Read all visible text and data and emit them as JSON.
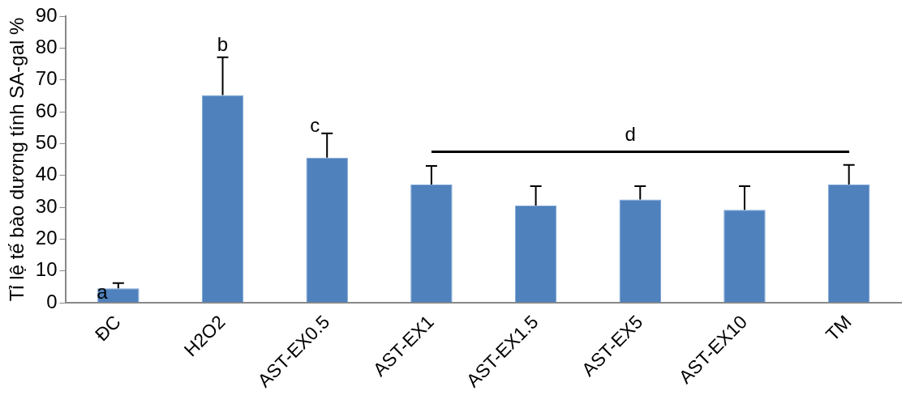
{
  "chart_data": {
    "type": "bar",
    "ylabel": "Tỉ lệ tế bào dương tính SA-gal %",
    "categories": [
      "ĐC",
      "H2O2",
      "AST-EX0.5",
      "AST-EX1",
      "AST-EX1.5",
      "AST-EX5",
      "AST-EX10",
      "TM"
    ],
    "values": [
      4.5,
      65.2,
      45.6,
      37.1,
      30.5,
      32.4,
      29.2,
      37.1
    ],
    "errors": [
      [
        4.5,
        6.2
      ],
      [
        65.2,
        77.1
      ],
      [
        45.6,
        53.2
      ],
      [
        37.1,
        43.0
      ],
      [
        30.5,
        36.6
      ],
      [
        32.4,
        36.6
      ],
      [
        29.2,
        36.6
      ],
      [
        37.1,
        43.3
      ]
    ],
    "color": "#4f81bd",
    "ylim": [
      0,
      90
    ],
    "yticks": [
      0,
      10,
      20,
      30,
      40,
      50,
      60,
      70,
      80,
      90
    ],
    "annotations": [
      "a",
      "b",
      "c",
      "d"
    ],
    "grid": false,
    "legend": false
  }
}
